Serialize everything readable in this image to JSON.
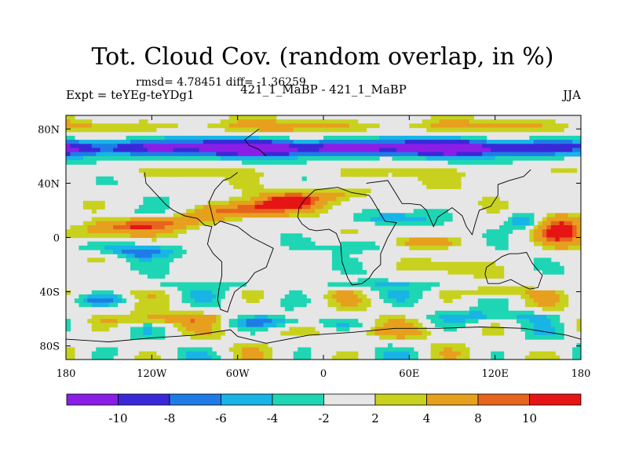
{
  "chart_data": {
    "type": "heatmap",
    "title": "Tot. Cloud Cov. (random overlap, in %)",
    "stats": "rmsd= 4.78451 diff= -1.36259",
    "left_label": "Expt = teYEg-teYDg1",
    "center_label": "421_1_MaBP - 421_1_MaBP",
    "right_label": "JJA",
    "x_ticks": [
      "180",
      "120W",
      "60W",
      "0",
      "60E",
      "120E",
      "180"
    ],
    "x_range": [
      -180,
      180
    ],
    "y_ticks": [
      "80N",
      "40N",
      "0",
      "40S",
      "80S"
    ],
    "y_range": [
      -90,
      90
    ],
    "colorbar": {
      "levels": [
        -10,
        -8,
        -6,
        -4,
        -2,
        2,
        4,
        8,
        10
      ],
      "labels": [
        "-10",
        "-8",
        "-6",
        "-4",
        "-2",
        "2",
        "4",
        "8",
        "10"
      ],
      "colors": [
        "#8a1ee6",
        "#3a28d8",
        "#1f7ce6",
        "#18b4e6",
        "#1ed6b4",
        "#e6e6e6",
        "#c8d21e",
        "#e6a01e",
        "#e6641e",
        "#e61414"
      ]
    },
    "features": [
      {
        "name": "arctic-negative-band",
        "lat": 65,
        "lon_span": [
          -180,
          180
        ],
        "value": -10
      },
      {
        "name": "tropical-positive-band",
        "lat": 5,
        "lon_span": [
          -170,
          20
        ],
        "value": 10
      },
      {
        "name": "west-pacific-positive",
        "lat": 0,
        "lon_span": [
          150,
          180
        ],
        "value": 8
      },
      {
        "name": "southern-mid-latitude-mixed",
        "lat": -55,
        "lon_span": [
          -180,
          180
        ],
        "value": 4
      }
    ]
  }
}
